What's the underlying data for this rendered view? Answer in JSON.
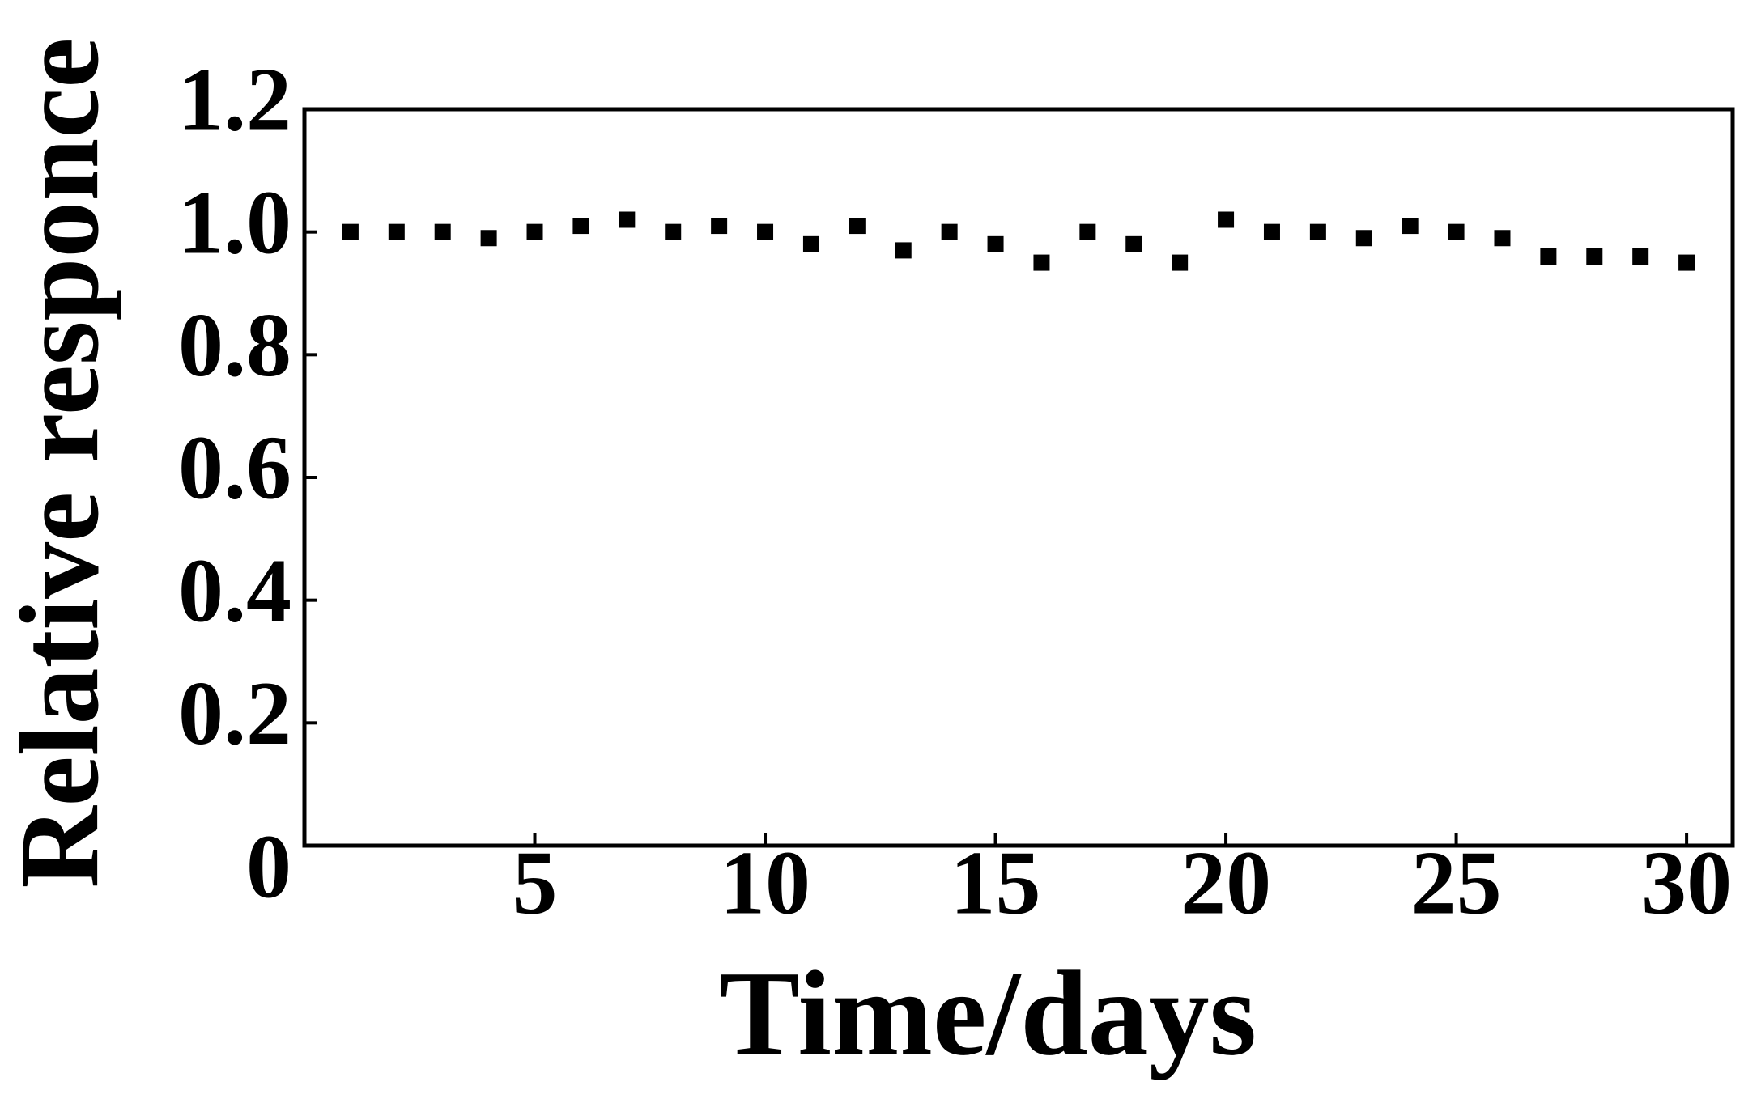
{
  "chart_data": {
    "type": "scatter",
    "x_label": "Time/days",
    "y_label": "Relative responce",
    "series": [
      {
        "color": "#000000",
        "x": [
          1,
          2,
          3,
          4,
          5,
          6,
          7,
          8,
          9,
          10,
          11,
          12,
          13,
          14,
          15,
          16,
          17,
          18,
          19,
          20,
          21,
          22,
          23,
          24,
          25,
          26,
          27,
          28,
          29,
          30
        ],
        "values": [
          1.0,
          1.0,
          1.0,
          0.99,
          1.0,
          1.01,
          1.02,
          1.0,
          1.01,
          1.0,
          0.98,
          1.01,
          0.97,
          1.0,
          0.98,
          0.95,
          1.0,
          0.98,
          0.95,
          1.02,
          1.0,
          1.0,
          0.99,
          1.01,
          1.0,
          0.99,
          0.96,
          0.96,
          0.96,
          0.95
        ]
      }
    ],
    "xlim": [
      0,
      31
    ],
    "xticks": [
      5,
      10,
      15,
      20,
      25,
      30
    ],
    "ylim": [
      0,
      1.2
    ],
    "yticks": [
      0,
      0.2,
      0.4,
      0.6,
      0.8,
      {
        "value": 1,
        "label": "1.0"
      },
      1.2
    ]
  }
}
